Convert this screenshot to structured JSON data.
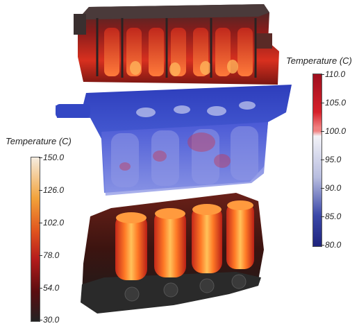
{
  "legends": {
    "low_range": {
      "title": "Temperature (C)",
      "ticks": [
        "150.0",
        "126.0",
        "102.0",
        "78.0",
        "54.0",
        "30.0"
      ],
      "range": [
        30,
        150
      ],
      "gradient_colors": [
        "#f5ece0",
        "#f2a23a",
        "#e0541e",
        "#b51c1c",
        "#5a0d10",
        "#222222"
      ]
    },
    "high_range": {
      "title": "Temperature (C)",
      "ticks": [
        "110.0",
        "105.0",
        "100.0",
        "95.0",
        "90.0",
        "85.0",
        "80.0"
      ],
      "range": [
        80,
        110
      ],
      "gradient_colors": [
        "#9e0f1e",
        "#d6202a",
        "#f08080",
        "#f2f2f7",
        "#b8bddf",
        "#3b48a8",
        "#1e237d"
      ]
    }
  }
}
